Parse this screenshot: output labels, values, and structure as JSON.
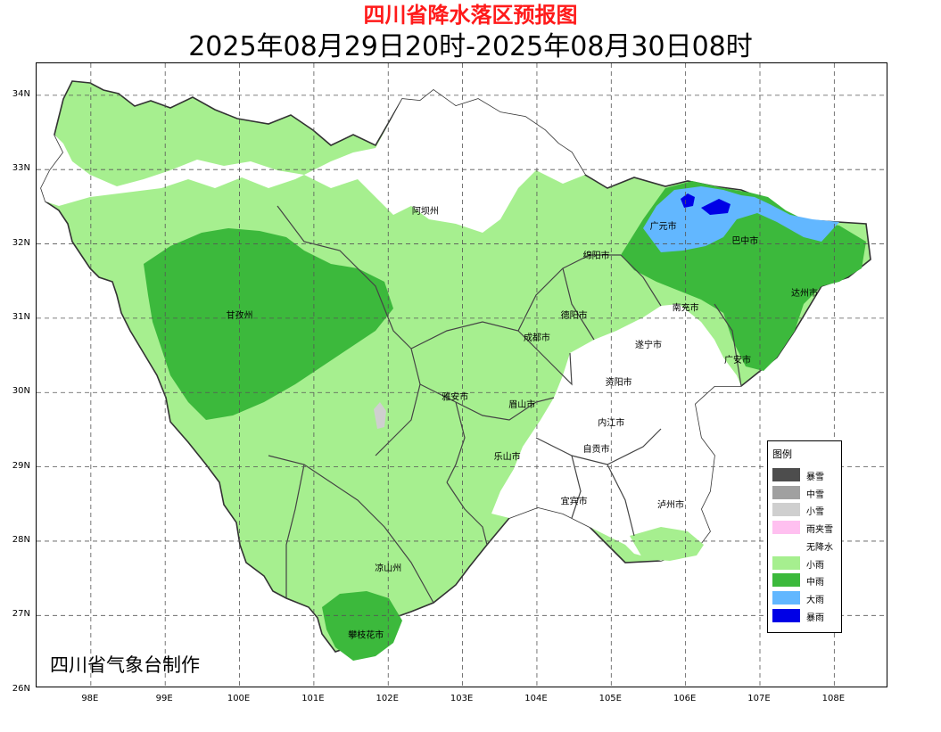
{
  "title": "四川省降水落区预报图",
  "subtitle": "2025年08月29日20时-2025年08月30日08时",
  "footer": "四川省气象台制作",
  "axes": {
    "y_ticks": [
      "34N",
      "33N",
      "32N",
      "31N",
      "30N",
      "29N",
      "28N",
      "27N",
      "26N"
    ],
    "x_ticks": [
      "98E",
      "99E",
      "100E",
      "101E",
      "102E",
      "103E",
      "104E",
      "105E",
      "106E",
      "107E",
      "108E"
    ],
    "grid": "dashed"
  },
  "legend": {
    "title": "图例",
    "items": [
      {
        "label": "暴雪",
        "color": "#4d4d4d"
      },
      {
        "label": "中雪",
        "color": "#a0a0a0"
      },
      {
        "label": "小雪",
        "color": "#cfcfcf"
      },
      {
        "label": "雨夹雪",
        "color": "#ffc0f0"
      },
      {
        "label": "无降水",
        "color": "#ffffff"
      },
      {
        "label": "小雨",
        "color": "#a6ef8f"
      },
      {
        "label": "中雨",
        "color": "#3cb93c"
      },
      {
        "label": "大雨",
        "color": "#62b7ff"
      },
      {
        "label": "暴雨",
        "color": "#0000e6"
      }
    ]
  },
  "cities": [
    {
      "name": "阿坝州",
      "lon": 102.5,
      "lat": 32.4
    },
    {
      "name": "广元市",
      "lon": 105.7,
      "lat": 32.2
    },
    {
      "name": "巴中市",
      "lon": 106.8,
      "lat": 32.0
    },
    {
      "name": "绵阳市",
      "lon": 104.8,
      "lat": 31.8
    },
    {
      "name": "甘孜州",
      "lon": 100.0,
      "lat": 31.0
    },
    {
      "name": "德阳市",
      "lon": 104.5,
      "lat": 31.0
    },
    {
      "name": "南充市",
      "lon": 106.0,
      "lat": 31.1
    },
    {
      "name": "达州市",
      "lon": 107.6,
      "lat": 31.3
    },
    {
      "name": "成都市",
      "lon": 104.0,
      "lat": 30.7
    },
    {
      "name": "遂宁市",
      "lon": 105.5,
      "lat": 30.6
    },
    {
      "name": "广安市",
      "lon": 106.7,
      "lat": 30.4
    },
    {
      "name": "资阳市",
      "lon": 105.1,
      "lat": 30.1
    },
    {
      "name": "雅安市",
      "lon": 102.9,
      "lat": 29.9
    },
    {
      "name": "眉山市",
      "lon": 103.8,
      "lat": 29.8
    },
    {
      "name": "内江市",
      "lon": 105.0,
      "lat": 29.55
    },
    {
      "name": "自贡市",
      "lon": 104.8,
      "lat": 29.2
    },
    {
      "name": "乐山市",
      "lon": 103.6,
      "lat": 29.1
    },
    {
      "name": "宜宾市",
      "lon": 104.5,
      "lat": 28.5
    },
    {
      "name": "泸州市",
      "lon": 105.8,
      "lat": 28.45
    },
    {
      "name": "凉山州",
      "lon": 102.0,
      "lat": 27.6
    },
    {
      "name": "攀枝花市",
      "lon": 101.7,
      "lat": 26.7
    }
  ]
}
